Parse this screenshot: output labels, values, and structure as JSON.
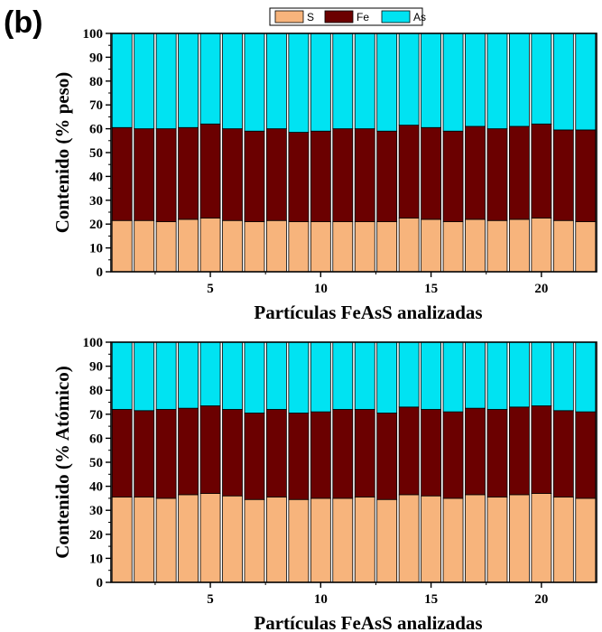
{
  "panel_label": "(b)",
  "colors": {
    "S": "#F7B47C",
    "Fe": "#6B0000",
    "As": "#00E3F2"
  },
  "legend": {
    "items": [
      "S",
      "Fe",
      "As"
    ]
  },
  "chart_data": [
    {
      "type": "bar",
      "stacked": true,
      "title": "",
      "xlabel": "Partículas FeAsS analizadas",
      "ylabel": "Contenido (% peso)",
      "ylim": [
        0,
        100
      ],
      "yticks": [
        0,
        10,
        20,
        30,
        40,
        50,
        60,
        70,
        80,
        90,
        100
      ],
      "xticks": [
        5,
        10,
        15,
        20
      ],
      "categories": [
        1,
        2,
        3,
        4,
        5,
        6,
        7,
        8,
        9,
        10,
        11,
        12,
        13,
        14,
        15,
        16,
        17,
        18,
        19,
        20,
        21,
        22
      ],
      "series": [
        {
          "name": "S",
          "values": [
            21.5,
            21.5,
            21.0,
            22.0,
            22.5,
            21.5,
            21.0,
            21.5,
            21.0,
            21.0,
            21.0,
            21.0,
            21.0,
            22.5,
            22.0,
            21.0,
            22.0,
            21.5,
            22.0,
            22.5,
            21.5,
            21.0
          ]
        },
        {
          "name": "Fe",
          "values": [
            39.0,
            38.5,
            39.0,
            38.5,
            39.5,
            38.5,
            38.0,
            38.5,
            37.5,
            38.0,
            39.0,
            39.0,
            38.0,
            39.0,
            38.5,
            38.0,
            39.0,
            38.5,
            39.0,
            39.5,
            38.0,
            38.5
          ]
        },
        {
          "name": "As",
          "values": [
            39.5,
            40.0,
            40.0,
            39.5,
            38.0,
            40.0,
            41.0,
            40.0,
            41.5,
            41.0,
            40.0,
            40.0,
            41.0,
            38.5,
            39.5,
            41.0,
            39.0,
            40.0,
            39.0,
            38.0,
            40.5,
            40.5
          ]
        }
      ]
    },
    {
      "type": "bar",
      "stacked": true,
      "title": "",
      "xlabel": "Partículas FeAsS analizadas",
      "ylabel": "Contenido (% Atómico)",
      "ylim": [
        0,
        100
      ],
      "yticks": [
        0,
        10,
        20,
        30,
        40,
        50,
        60,
        70,
        80,
        90,
        100
      ],
      "xticks": [
        5,
        10,
        15,
        20
      ],
      "categories": [
        1,
        2,
        3,
        4,
        5,
        6,
        7,
        8,
        9,
        10,
        11,
        12,
        13,
        14,
        15,
        16,
        17,
        18,
        19,
        20,
        21,
        22
      ],
      "series": [
        {
          "name": "S",
          "values": [
            35.5,
            35.5,
            35.0,
            36.5,
            37.0,
            36.0,
            34.5,
            35.5,
            34.5,
            35.0,
            35.0,
            35.5,
            34.5,
            36.5,
            36.0,
            35.0,
            36.5,
            35.5,
            36.5,
            37.0,
            35.5,
            35.0
          ]
        },
        {
          "name": "Fe",
          "values": [
            36.5,
            36.0,
            37.0,
            36.0,
            36.5,
            36.0,
            36.0,
            36.5,
            36.0,
            36.0,
            37.0,
            36.5,
            36.0,
            36.5,
            36.0,
            36.0,
            36.0,
            36.5,
            36.5,
            36.5,
            36.0,
            36.0
          ]
        },
        {
          "name": "As",
          "values": [
            28.0,
            28.5,
            28.0,
            27.5,
            26.5,
            28.0,
            29.5,
            28.0,
            29.5,
            29.0,
            28.0,
            28.0,
            29.5,
            27.0,
            28.0,
            29.0,
            27.5,
            28.0,
            27.0,
            26.5,
            28.5,
            29.0
          ]
        }
      ]
    }
  ]
}
